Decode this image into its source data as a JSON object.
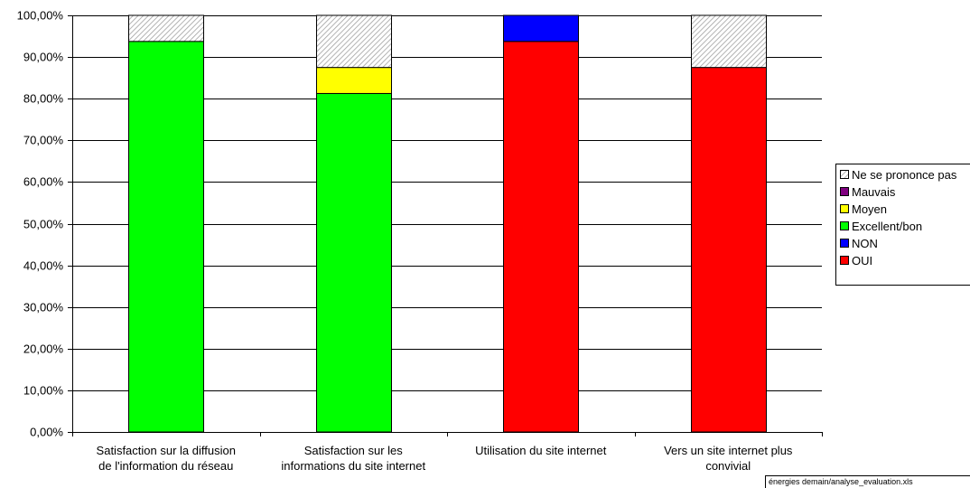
{
  "chart_data": {
    "type": "bar",
    "stacked": true,
    "categories": [
      [
        "Satisfaction sur la diffusion",
        "de l'information du réseau"
      ],
      [
        "Satisfaction sur les",
        "informations du site internet"
      ],
      [
        "Utilisation du site internet"
      ],
      [
        "Vers un site internet plus",
        "convivial"
      ]
    ],
    "series": [
      {
        "name": "OUI",
        "color": "#FF0000",
        "values": [
          0,
          0,
          93.75,
          87.5
        ]
      },
      {
        "name": "NON",
        "color": "#0000FF",
        "values": [
          0,
          0,
          6.25,
          0
        ]
      },
      {
        "name": "Excellent/bon",
        "color": "#00FF00",
        "values": [
          93.75,
          81.25,
          0,
          0
        ]
      },
      {
        "name": "Moyen",
        "color": "#FFFF00",
        "values": [
          0,
          6.25,
          0,
          0
        ]
      },
      {
        "name": "Mauvais",
        "color": "#800080",
        "values": [
          0,
          0,
          0,
          0
        ]
      },
      {
        "name": "Ne se prononce pas",
        "color": "hatch-gray",
        "values": [
          6.25,
          12.5,
          0,
          12.5
        ]
      }
    ],
    "legend_order": [
      "Ne se prononce pas",
      "Mauvais",
      "Moyen",
      "Excellent/bon",
      "NON",
      "OUI"
    ],
    "legend_position": "right",
    "ylim": [
      0,
      100
    ],
    "ytick_step": 10,
    "ytick_format": "percent-2dec-comma",
    "grid": true
  },
  "footer": {
    "text": "énergies demain/analyse_evaluation.xls"
  }
}
